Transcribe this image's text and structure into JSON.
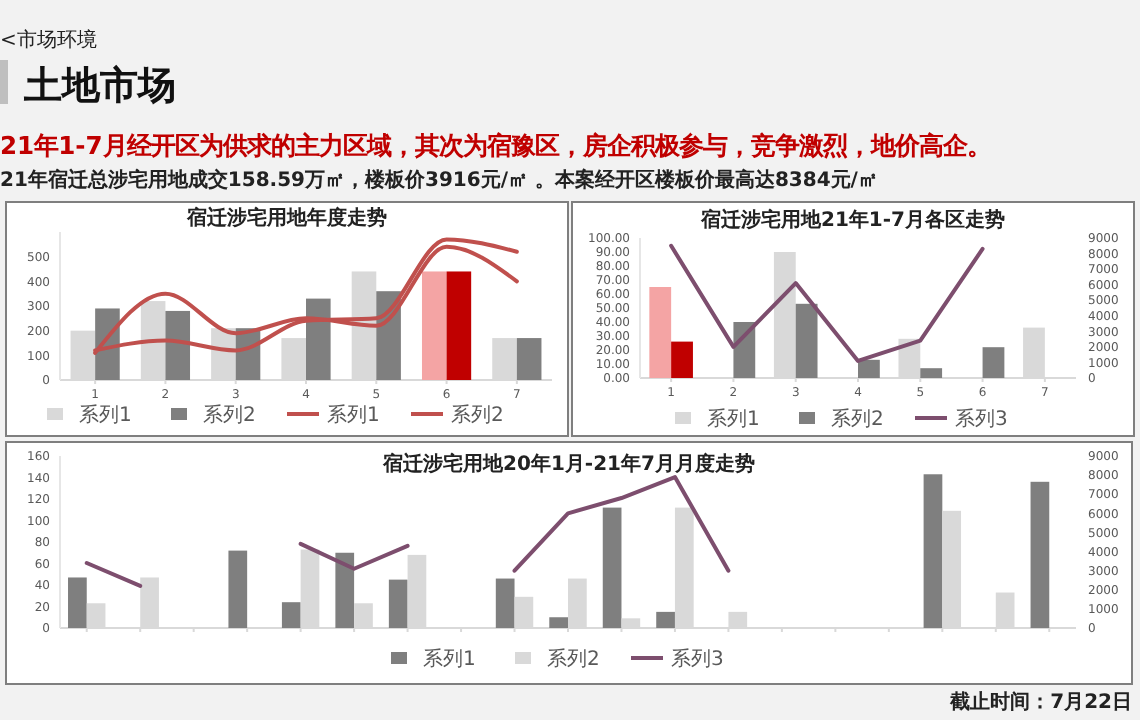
{
  "chart_data": [
    {
      "type": "other",
      "title": "土地市场",
      "subtitle": "21年1-7月经开区为供求的主力区域，其次为宿豫区，房企积极参与，竞争激烈，地价高企。",
      "annotations": [
        "<市场环境",
        "21年宿迁总涉宅用地成交158.59万㎡，楼板价3916元/㎡ 。本案经开区楼板价最高达8384元/㎡"
      ]
    },
    {
      "type": "bar",
      "title": "宿迁涉宅用地年度走势",
      "categories": [
        "1",
        "2",
        "3",
        "4",
        "5",
        "6",
        "7"
      ],
      "ylim": [
        0,
        600
      ],
      "yticks": [
        0,
        100,
        200,
        300,
        400,
        500
      ],
      "legend": "bottom",
      "series": [
        {
          "name": "系列1",
          "color": "#d9d9d9",
          "colors": [
            "#d9d9d9",
            "#d9d9d9",
            "#d9d9d9",
            "#d9d9d9",
            "#d9d9d9",
            "#f4a4a4",
            "#d9d9d9"
          ],
          "values": [
            200,
            320,
            210,
            170,
            440,
            440,
            170
          ]
        },
        {
          "name": "系列2",
          "color": "#7f7f7f",
          "colors": [
            "#7f7f7f",
            "#7f7f7f",
            "#7f7f7f",
            "#7f7f7f",
            "#7f7f7f",
            "#c00000",
            "#7f7f7f"
          ],
          "values": [
            290,
            280,
            210,
            330,
            360,
            440,
            170
          ]
        },
        {
          "name": "系列1",
          "type": "line",
          "color": "#c0504d",
          "values": [
            110,
            350,
            190,
            250,
            220,
            540,
            400
          ]
        },
        {
          "name": "系列2",
          "type": "line",
          "color": "#c0504d",
          "values": [
            120,
            160,
            120,
            240,
            250,
            570,
            520
          ]
        }
      ]
    },
    {
      "type": "bar",
      "title": "宿迁涉宅用地21年1-7月各区走势",
      "categories": [
        "1",
        "2",
        "3",
        "4",
        "5",
        "6",
        "7"
      ],
      "ylim": [
        0,
        100
      ],
      "yticks": [
        {
          "value": 0,
          "label": "0.00"
        },
        {
          "value": 10,
          "label": "10.00"
        },
        {
          "value": 20,
          "label": "20.00"
        },
        {
          "value": 30,
          "label": "30.00"
        },
        {
          "value": 40,
          "label": "40.00"
        },
        {
          "value": 50,
          "label": "50.00"
        },
        {
          "value": 60,
          "label": "60.00"
        },
        {
          "value": 70,
          "label": "70.00"
        },
        {
          "value": 80,
          "label": "80.00"
        },
        {
          "value": 90,
          "label": "90.00"
        },
        {
          "value": 100,
          "label": "100.00"
        }
      ],
      "y2lim": [
        0,
        9000
      ],
      "y2ticks": [
        0,
        1000,
        2000,
        3000,
        4000,
        5000,
        6000,
        7000,
        8000,
        9000
      ],
      "legend": "bottom",
      "series": [
        {
          "name": "系列1",
          "color": "#d9d9d9",
          "colors": [
            "#f4a4a4",
            null,
            "#d9d9d9",
            null,
            "#d9d9d9",
            null,
            "#d9d9d9"
          ],
          "values": [
            65,
            null,
            90,
            null,
            28,
            null,
            36
          ]
        },
        {
          "name": "系列2",
          "color": "#7f7f7f",
          "colors": [
            "#c00000",
            "#7f7f7f",
            "#7f7f7f",
            "#7f7f7f",
            "#7f7f7f",
            "#7f7f7f",
            null
          ],
          "values": [
            26,
            40,
            53,
            13,
            7,
            22,
            null
          ]
        },
        {
          "name": "系列3",
          "type": "line",
          "axis": "y2",
          "color": "#7d4e6e",
          "values": [
            8500,
            2000,
            6100,
            1100,
            2400,
            8300,
            null
          ]
        }
      ]
    },
    {
      "type": "bar",
      "title": "宿迁涉宅用地20年1月-21年7月月度走势",
      "categories": [
        null,
        null,
        null,
        null,
        null,
        null,
        null,
        null,
        null,
        null,
        null,
        null,
        null,
        null,
        null,
        null,
        null,
        null,
        null
      ],
      "ylim": [
        0,
        160
      ],
      "yticks": [
        0,
        20,
        40,
        60,
        80,
        100,
        120,
        140,
        160
      ],
      "y2lim": [
        0,
        9000
      ],
      "y2ticks": [
        0,
        1000,
        2000,
        3000,
        4000,
        5000,
        6000,
        7000,
        8000,
        9000
      ],
      "legend": "bottom",
      "annotations": [
        "截止时间：7月22日"
      ],
      "series": [
        {
          "name": "系列1",
          "color": "#7f7f7f",
          "values": [
            47,
            null,
            null,
            72,
            24,
            70,
            45,
            null,
            46,
            10,
            112,
            15,
            null,
            null,
            null,
            null,
            143,
            null,
            136
          ]
        },
        {
          "name": "系列2",
          "color": "#d9d9d9",
          "values": [
            23,
            47,
            null,
            null,
            73,
            23,
            68,
            null,
            29,
            46,
            9,
            112,
            15,
            null,
            null,
            null,
            109,
            33,
            null
          ]
        },
        {
          "name": "系列3",
          "type": "line",
          "axis": "y2",
          "color": "#7d4e6e",
          "values": [
            3400,
            2200,
            null,
            null,
            4400,
            3100,
            4300,
            null,
            3000,
            6000,
            6800,
            7900,
            3000,
            null,
            null,
            null,
            null,
            null,
            null
          ]
        }
      ]
    }
  ]
}
